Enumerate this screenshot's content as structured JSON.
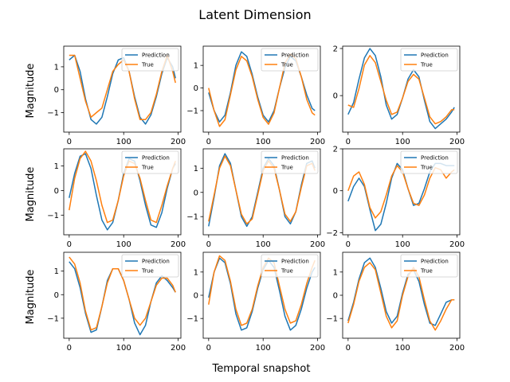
{
  "figure": {
    "title": "Latent Dimension",
    "xlabel": "Temporal snapshot",
    "ylabel": "Magnitude"
  },
  "colors": {
    "prediction": "#1f77b4",
    "true": "#ff7f0e",
    "axes": "#000000",
    "legend_edge": "#cccccc"
  },
  "chart_data": [
    {
      "type": "line",
      "row": 1,
      "col": 1,
      "xlim": [
        -10,
        205
      ],
      "ylim": [
        -1.85,
        1.9
      ],
      "xticks": [
        0,
        100,
        200
      ],
      "yticks": [
        -1,
        0,
        1
      ],
      "legend": "top-right",
      "series": [
        {
          "name": "Prediction",
          "x": [
            0,
            10,
            20,
            30,
            40,
            50,
            60,
            70,
            80,
            90,
            100,
            110,
            120,
            130,
            140,
            150,
            160,
            170,
            180,
            190,
            195
          ],
          "values": [
            1.3,
            1.5,
            0.8,
            -0.4,
            -1.3,
            -1.5,
            -1.2,
            -0.3,
            0.7,
            1.3,
            1.4,
            0.8,
            -0.3,
            -1.2,
            -1.5,
            -1.1,
            -0.3,
            0.7,
            1.4,
            1.0,
            0.5
          ]
        },
        {
          "name": "True",
          "x": [
            0,
            10,
            20,
            30,
            40,
            50,
            60,
            70,
            80,
            90,
            100,
            110,
            120,
            130,
            140,
            150,
            160,
            170,
            180,
            190,
            195
          ],
          "values": [
            1.5,
            1.5,
            0.5,
            -0.5,
            -1.2,
            -1.0,
            -0.8,
            0.0,
            0.8,
            1.1,
            1.3,
            0.8,
            -0.4,
            -1.3,
            -1.3,
            -1.0,
            -0.2,
            0.8,
            1.5,
            0.8,
            0.3
          ]
        }
      ]
    },
    {
      "type": "line",
      "row": 1,
      "col": 2,
      "xlim": [
        -10,
        205
      ],
      "ylim": [
        -1.95,
        1.85
      ],
      "xticks": [
        0,
        100,
        200
      ],
      "yticks": [
        -1,
        0,
        1
      ],
      "legend": "top-right",
      "series": [
        {
          "name": "Prediction",
          "x": [
            0,
            10,
            20,
            30,
            40,
            50,
            60,
            70,
            80,
            90,
            100,
            110,
            120,
            130,
            140,
            150,
            160,
            170,
            180,
            190,
            195
          ],
          "values": [
            -0.2,
            -1.0,
            -1.5,
            -1.2,
            -0.2,
            1.0,
            1.6,
            1.4,
            0.6,
            -0.4,
            -1.2,
            -1.5,
            -1.0,
            0.0,
            0.9,
            1.4,
            1.2,
            0.5,
            -0.3,
            -0.9,
            -1.0
          ]
        },
        {
          "name": "True",
          "x": [
            0,
            10,
            20,
            30,
            40,
            50,
            60,
            70,
            80,
            90,
            100,
            110,
            120,
            130,
            140,
            150,
            160,
            170,
            180,
            190,
            195
          ],
          "values": [
            0.0,
            -1.0,
            -1.7,
            -1.4,
            -0.3,
            0.8,
            1.4,
            1.2,
            0.5,
            -0.5,
            -1.3,
            -1.6,
            -1.1,
            0.0,
            1.1,
            1.5,
            1.3,
            0.5,
            -0.5,
            -1.1,
            -1.2
          ]
        }
      ]
    },
    {
      "type": "line",
      "row": 1,
      "col": 3,
      "xlim": [
        -10,
        205
      ],
      "ylim": [
        -1.55,
        2.1
      ],
      "xticks": [
        0,
        100,
        200
      ],
      "yticks": [
        0,
        2
      ],
      "legend": "top-right",
      "series": [
        {
          "name": "Prediction",
          "x": [
            0,
            10,
            20,
            30,
            40,
            50,
            60,
            70,
            80,
            90,
            100,
            110,
            120,
            130,
            140,
            150,
            160,
            170,
            180,
            190,
            195
          ],
          "values": [
            -0.8,
            -0.3,
            0.7,
            1.6,
            2.0,
            1.7,
            0.8,
            -0.4,
            -1.0,
            -0.8,
            -0.1,
            0.7,
            1.1,
            0.8,
            -0.2,
            -1.1,
            -1.4,
            -1.2,
            -1.0,
            -0.7,
            -0.5
          ]
        },
        {
          "name": "True",
          "x": [
            0,
            10,
            20,
            30,
            40,
            50,
            60,
            70,
            80,
            90,
            100,
            110,
            120,
            130,
            140,
            150,
            160,
            170,
            180,
            190,
            195
          ],
          "values": [
            -0.4,
            -0.5,
            0.3,
            1.3,
            1.7,
            1.4,
            0.6,
            -0.2,
            -0.8,
            -0.7,
            -0.1,
            0.6,
            0.9,
            0.7,
            -0.1,
            -0.9,
            -1.2,
            -1.1,
            -0.9,
            -0.6,
            -0.6
          ]
        }
      ]
    },
    {
      "type": "line",
      "row": 2,
      "col": 1,
      "xlim": [
        -10,
        205
      ],
      "ylim": [
        -1.8,
        1.7
      ],
      "xticks": [
        0,
        100,
        200
      ],
      "yticks": [
        -1,
        0,
        1
      ],
      "legend": "top-right",
      "series": [
        {
          "name": "Prediction",
          "x": [
            0,
            10,
            20,
            30,
            40,
            50,
            60,
            70,
            80,
            90,
            100,
            110,
            120,
            130,
            140,
            150,
            160,
            170,
            180,
            190,
            195
          ],
          "values": [
            -0.3,
            0.7,
            1.4,
            1.5,
            0.9,
            -0.2,
            -1.2,
            -1.6,
            -1.3,
            -0.4,
            0.7,
            1.3,
            1.2,
            0.4,
            -0.6,
            -1.4,
            -1.5,
            -0.9,
            0.1,
            0.9,
            1.1
          ]
        },
        {
          "name": "True",
          "x": [
            0,
            10,
            20,
            30,
            40,
            50,
            60,
            70,
            80,
            90,
            100,
            110,
            120,
            130,
            140,
            150,
            160,
            170,
            180,
            190,
            195
          ],
          "values": [
            -0.8,
            0.5,
            1.3,
            1.6,
            1.2,
            0.4,
            -0.6,
            -1.3,
            -1.2,
            -0.4,
            0.6,
            1.2,
            1.1,
            0.5,
            -0.4,
            -1.2,
            -1.3,
            -0.6,
            0.2,
            0.9,
            1.2
          ]
        }
      ]
    },
    {
      "type": "line",
      "row": 2,
      "col": 2,
      "xlim": [
        -10,
        205
      ],
      "ylim": [
        -1.75,
        1.8
      ],
      "xticks": [
        0,
        100,
        200
      ],
      "yticks": [
        -1,
        0,
        1
      ],
      "legend": "top-right",
      "series": [
        {
          "name": "Prediction",
          "x": [
            0,
            10,
            20,
            30,
            40,
            50,
            60,
            70,
            80,
            90,
            100,
            110,
            120,
            130,
            140,
            150,
            160,
            170,
            180,
            190,
            195
          ],
          "values": [
            -1.4,
            -0.2,
            1.1,
            1.6,
            1.2,
            0.1,
            -1.0,
            -1.4,
            -1.0,
            0.0,
            1.0,
            1.4,
            1.1,
            0.1,
            -1.0,
            -1.3,
            -0.8,
            0.3,
            1.2,
            1.3,
            1.0
          ]
        },
        {
          "name": "True",
          "x": [
            0,
            10,
            20,
            30,
            40,
            50,
            60,
            70,
            80,
            90,
            100,
            110,
            120,
            130,
            140,
            150,
            160,
            170,
            180,
            190,
            195
          ],
          "values": [
            -1.2,
            -0.1,
            1.0,
            1.5,
            1.1,
            0.1,
            -0.9,
            -1.3,
            -1.1,
            -0.1,
            0.9,
            1.3,
            1.0,
            0.1,
            -0.9,
            -1.2,
            -0.8,
            0.2,
            1.1,
            1.2,
            0.9
          ]
        }
      ]
    },
    {
      "type": "line",
      "row": 2,
      "col": 3,
      "xlim": [
        -10,
        205
      ],
      "ylim": [
        -2.1,
        2.0
      ],
      "xticks": [
        0,
        100,
        200
      ],
      "yticks": [
        -2,
        0,
        2
      ],
      "legend": "top-right",
      "series": [
        {
          "name": "Prediction",
          "x": [
            0,
            10,
            20,
            30,
            40,
            50,
            60,
            70,
            80,
            90,
            100,
            110,
            120,
            130,
            140,
            150,
            160,
            170,
            180,
            190,
            195
          ],
          "values": [
            -0.5,
            0.2,
            0.6,
            0.2,
            -0.9,
            -1.9,
            -1.6,
            -0.6,
            0.6,
            1.3,
            1.0,
            0.1,
            -0.7,
            -0.6,
            0.1,
            0.9,
            1.3,
            1.3,
            1.2,
            1.2,
            1.2
          ]
        },
        {
          "name": "True",
          "x": [
            0,
            10,
            20,
            30,
            40,
            50,
            60,
            70,
            80,
            90,
            100,
            110,
            120,
            130,
            140,
            150,
            160,
            170,
            180,
            190,
            195
          ],
          "values": [
            0.0,
            0.7,
            0.9,
            0.3,
            -0.8,
            -1.3,
            -1.0,
            -0.2,
            0.7,
            1.2,
            0.9,
            0.1,
            -0.6,
            -0.7,
            -0.2,
            0.6,
            1.1,
            1.0,
            0.6,
            0.9,
            1.0
          ]
        }
      ]
    },
    {
      "type": "line",
      "row": 3,
      "col": 1,
      "xlim": [
        -10,
        205
      ],
      "ylim": [
        -1.85,
        1.8
      ],
      "xticks": [
        0,
        100,
        200
      ],
      "yticks": [
        -1,
        0,
        1
      ],
      "legend": "top-right",
      "series": [
        {
          "name": "Prediction",
          "x": [
            0,
            10,
            20,
            30,
            40,
            50,
            60,
            70,
            80,
            90,
            100,
            110,
            120,
            130,
            140,
            150,
            160,
            170,
            180,
            190,
            195
          ],
          "values": [
            1.4,
            1.1,
            0.3,
            -0.8,
            -1.6,
            -1.5,
            -0.5,
            0.6,
            1.1,
            1.1,
            0.6,
            -0.2,
            -1.2,
            -1.7,
            -1.3,
            -0.3,
            0.5,
            0.8,
            0.6,
            0.3,
            0.1
          ]
        },
        {
          "name": "True",
          "x": [
            0,
            10,
            20,
            30,
            40,
            50,
            60,
            70,
            80,
            90,
            100,
            110,
            120,
            130,
            140,
            150,
            160,
            170,
            180,
            190,
            195
          ],
          "values": [
            1.6,
            1.3,
            0.5,
            -0.7,
            -1.5,
            -1.4,
            -0.5,
            0.5,
            1.1,
            1.1,
            0.6,
            -0.2,
            -1.0,
            -1.3,
            -1.0,
            -0.3,
            0.4,
            0.7,
            0.7,
            0.4,
            0.1
          ]
        }
      ]
    },
    {
      "type": "line",
      "row": 3,
      "col": 2,
      "xlim": [
        -10,
        205
      ],
      "ylim": [
        -1.85,
        1.85
      ],
      "xticks": [
        0,
        100,
        200
      ],
      "yticks": [
        -1,
        0,
        1
      ],
      "legend": "top-right",
      "series": [
        {
          "name": "Prediction",
          "x": [
            0,
            10,
            20,
            30,
            40,
            50,
            60,
            70,
            80,
            90,
            100,
            110,
            120,
            130,
            140,
            150,
            160,
            170,
            180,
            190,
            195
          ],
          "values": [
            -0.1,
            1.0,
            1.6,
            1.4,
            0.5,
            -0.8,
            -1.5,
            -1.4,
            -0.7,
            0.3,
            1.1,
            1.5,
            1.2,
            0.2,
            -0.9,
            -1.5,
            -1.3,
            -0.6,
            0.3,
            1.0,
            1.2
          ]
        },
        {
          "name": "True",
          "x": [
            0,
            10,
            20,
            30,
            40,
            50,
            60,
            70,
            80,
            90,
            100,
            110,
            120,
            130,
            140,
            150,
            160,
            170,
            180,
            190,
            195
          ],
          "values": [
            -0.4,
            1.0,
            1.7,
            1.5,
            0.6,
            -0.6,
            -1.3,
            -1.2,
            -0.6,
            0.4,
            1.2,
            1.6,
            1.4,
            0.4,
            -0.6,
            -1.2,
            -1.1,
            -0.4,
            0.5,
            1.2,
            1.5
          ]
        }
      ]
    },
    {
      "type": "line",
      "row": 3,
      "col": 3,
      "xlim": [
        -10,
        205
      ],
      "ylim": [
        -1.85,
        1.85
      ],
      "xticks": [
        0,
        100,
        200
      ],
      "yticks": [
        -1,
        0,
        1
      ],
      "legend": "top-right",
      "series": [
        {
          "name": "Prediction",
          "x": [
            0,
            10,
            20,
            30,
            40,
            50,
            60,
            70,
            80,
            90,
            100,
            110,
            120,
            130,
            140,
            150,
            160,
            170,
            180,
            190,
            195
          ],
          "values": [
            -1.1,
            -0.3,
            0.7,
            1.4,
            1.6,
            1.2,
            0.3,
            -0.7,
            -1.2,
            -0.9,
            0.1,
            0.9,
            1.1,
            0.6,
            -0.4,
            -1.2,
            -1.3,
            -0.8,
            -0.3,
            -0.2,
            -0.2
          ]
        },
        {
          "name": "True",
          "x": [
            0,
            10,
            20,
            30,
            40,
            50,
            60,
            70,
            80,
            90,
            100,
            110,
            120,
            130,
            140,
            150,
            160,
            170,
            180,
            190,
            195
          ],
          "values": [
            -1.2,
            -0.4,
            0.6,
            1.2,
            1.4,
            1.1,
            0.1,
            -0.9,
            -1.4,
            -1.1,
            0.0,
            0.8,
            1.2,
            0.8,
            -0.2,
            -1.1,
            -1.5,
            -1.1,
            -0.6,
            -0.2,
            -0.2
          ]
        }
      ]
    }
  ]
}
